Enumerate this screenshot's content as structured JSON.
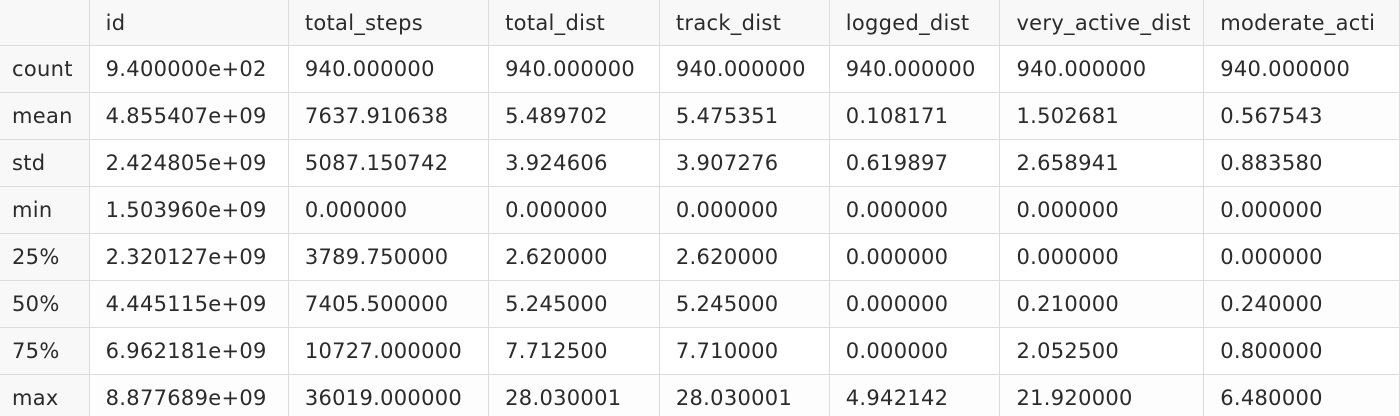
{
  "table": {
    "columns": [
      "",
      "id",
      "total_steps",
      "total_dist",
      "track_dist",
      "logged_dist",
      "very_active_dist",
      "moderate_acti"
    ],
    "rows": [
      {
        "label": "count",
        "cells": [
          "9.400000e+02",
          "940.000000",
          "940.000000",
          "940.000000",
          "940.000000",
          "940.000000",
          "940.000000"
        ]
      },
      {
        "label": "mean",
        "cells": [
          "4.855407e+09",
          "7637.910638",
          "5.489702",
          "5.475351",
          "0.108171",
          "1.502681",
          "0.567543"
        ]
      },
      {
        "label": "std",
        "cells": [
          "2.424805e+09",
          "5087.150742",
          "3.924606",
          "3.907276",
          "0.619897",
          "2.658941",
          "0.883580"
        ]
      },
      {
        "label": "min",
        "cells": [
          "1.503960e+09",
          "0.000000",
          "0.000000",
          "0.000000",
          "0.000000",
          "0.000000",
          "0.000000"
        ]
      },
      {
        "label": "25%",
        "cells": [
          "2.320127e+09",
          "3789.750000",
          "2.620000",
          "2.620000",
          "0.000000",
          "0.000000",
          "0.000000"
        ]
      },
      {
        "label": "50%",
        "cells": [
          "4.445115e+09",
          "7405.500000",
          "5.245000",
          "5.245000",
          "0.000000",
          "0.210000",
          "0.240000"
        ]
      },
      {
        "label": "75%",
        "cells": [
          "6.962181e+09",
          "10727.000000",
          "7.712500",
          "7.710000",
          "0.000000",
          "2.052500",
          "0.800000"
        ]
      },
      {
        "label": "max",
        "cells": [
          "8.877689e+09",
          "36019.000000",
          "28.030001",
          "28.030001",
          "4.942142",
          "21.920000",
          "6.480000"
        ]
      }
    ]
  }
}
